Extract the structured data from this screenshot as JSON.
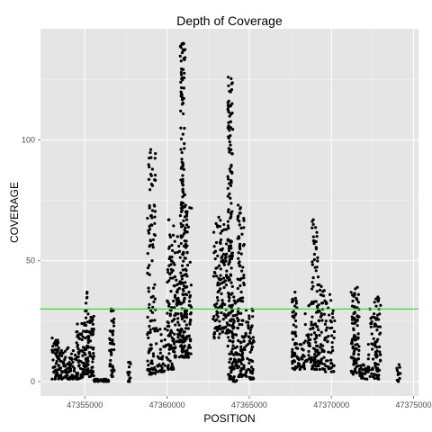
{
  "chart_data": {
    "type": "scatter",
    "title": "Depth of Coverage",
    "xlabel": "POSITION",
    "ylabel": "COVERAGE",
    "xlim": [
      47352300,
      47375300
    ],
    "ylim": [
      -6,
      146
    ],
    "x_ticks": [
      47355000,
      47360000,
      47365000,
      47370000,
      47375000
    ],
    "x_tick_labels": [
      "47355000",
      "47360000",
      "47365000",
      "47370000",
      "47375000"
    ],
    "y_ticks": [
      0,
      50,
      100
    ],
    "y_tick_labels": [
      "0",
      "50",
      "100"
    ],
    "grid": true,
    "panel_background": "#e5e5e5",
    "grid_color": "#ffffff",
    "point_color": "#000000",
    "reference_line": {
      "y": 30,
      "color": "#33dd33"
    },
    "clusters": [
      {
        "x_start": 47353000,
        "x_end": 47353600,
        "y_min": 1,
        "y_max": 18,
        "count": 70
      },
      {
        "x_start": 47353600,
        "x_end": 47354400,
        "y_min": 1,
        "y_max": 14,
        "count": 60
      },
      {
        "x_start": 47354400,
        "x_end": 47354900,
        "y_min": 1,
        "y_max": 24,
        "count": 55
      },
      {
        "x_start": 47354900,
        "x_end": 47355200,
        "y_min": 3,
        "y_max": 37,
        "count": 60
      },
      {
        "x_start": 47355200,
        "x_end": 47355550,
        "y_min": 2,
        "y_max": 27,
        "count": 50
      },
      {
        "x_start": 47355500,
        "x_end": 47356500,
        "y_min": 0,
        "y_max": 1,
        "count": 40
      },
      {
        "x_start": 47356500,
        "x_end": 47356800,
        "y_min": 2,
        "y_max": 30,
        "count": 45
      },
      {
        "x_start": 47357600,
        "x_end": 47357800,
        "y_min": 0,
        "y_max": 8,
        "count": 15
      },
      {
        "x_start": 47358800,
        "x_end": 47359300,
        "y_min": 3,
        "y_max": 96,
        "count": 110
      },
      {
        "x_start": 47359300,
        "x_end": 47360000,
        "y_min": 4,
        "y_max": 22,
        "count": 40
      },
      {
        "x_start": 47360000,
        "x_end": 47360400,
        "y_min": 5,
        "y_max": 67,
        "count": 90
      },
      {
        "x_start": 47360400,
        "x_end": 47360800,
        "y_min": 10,
        "y_max": 60,
        "count": 60
      },
      {
        "x_start": 47360800,
        "x_end": 47361100,
        "y_min": 10,
        "y_max": 140,
        "count": 170
      },
      {
        "x_start": 47361100,
        "x_end": 47361500,
        "y_min": 10,
        "y_max": 73,
        "count": 80
      },
      {
        "x_start": 47362800,
        "x_end": 47363300,
        "y_min": 18,
        "y_max": 68,
        "count": 70
      },
      {
        "x_start": 47363300,
        "x_end": 47363700,
        "y_min": 20,
        "y_max": 65,
        "count": 60
      },
      {
        "x_start": 47363700,
        "x_end": 47364000,
        "y_min": 1,
        "y_max": 126,
        "count": 160
      },
      {
        "x_start": 47364000,
        "x_end": 47364300,
        "y_min": 0,
        "y_max": 35,
        "count": 50
      },
      {
        "x_start": 47364300,
        "x_end": 47364700,
        "y_min": 2,
        "y_max": 73,
        "count": 110
      },
      {
        "x_start": 47364700,
        "x_end": 47365300,
        "y_min": 1,
        "y_max": 30,
        "count": 70
      },
      {
        "x_start": 47367600,
        "x_end": 47367900,
        "y_min": 5,
        "y_max": 37,
        "count": 55
      },
      {
        "x_start": 47367900,
        "x_end": 47368400,
        "y_min": 5,
        "y_max": 16,
        "count": 30
      },
      {
        "x_start": 47368400,
        "x_end": 47368800,
        "y_min": 8,
        "y_max": 32,
        "count": 30
      },
      {
        "x_start": 47368800,
        "x_end": 47369200,
        "y_min": 5,
        "y_max": 67,
        "count": 80
      },
      {
        "x_start": 47369200,
        "x_end": 47369600,
        "y_min": 5,
        "y_max": 40,
        "count": 50
      },
      {
        "x_start": 47369600,
        "x_end": 47370200,
        "y_min": 4,
        "y_max": 36,
        "count": 50
      },
      {
        "x_start": 47371200,
        "x_end": 47371700,
        "y_min": 3,
        "y_max": 39,
        "count": 90
      },
      {
        "x_start": 47371700,
        "x_end": 47372200,
        "y_min": 1,
        "y_max": 7,
        "count": 25
      },
      {
        "x_start": 47372200,
        "x_end": 47372600,
        "y_min": 2,
        "y_max": 30,
        "count": 30
      },
      {
        "x_start": 47372600,
        "x_end": 47373000,
        "y_min": 1,
        "y_max": 35,
        "count": 60
      },
      {
        "x_start": 47373900,
        "x_end": 47374200,
        "y_min": 0,
        "y_max": 7,
        "count": 12
      }
    ]
  }
}
